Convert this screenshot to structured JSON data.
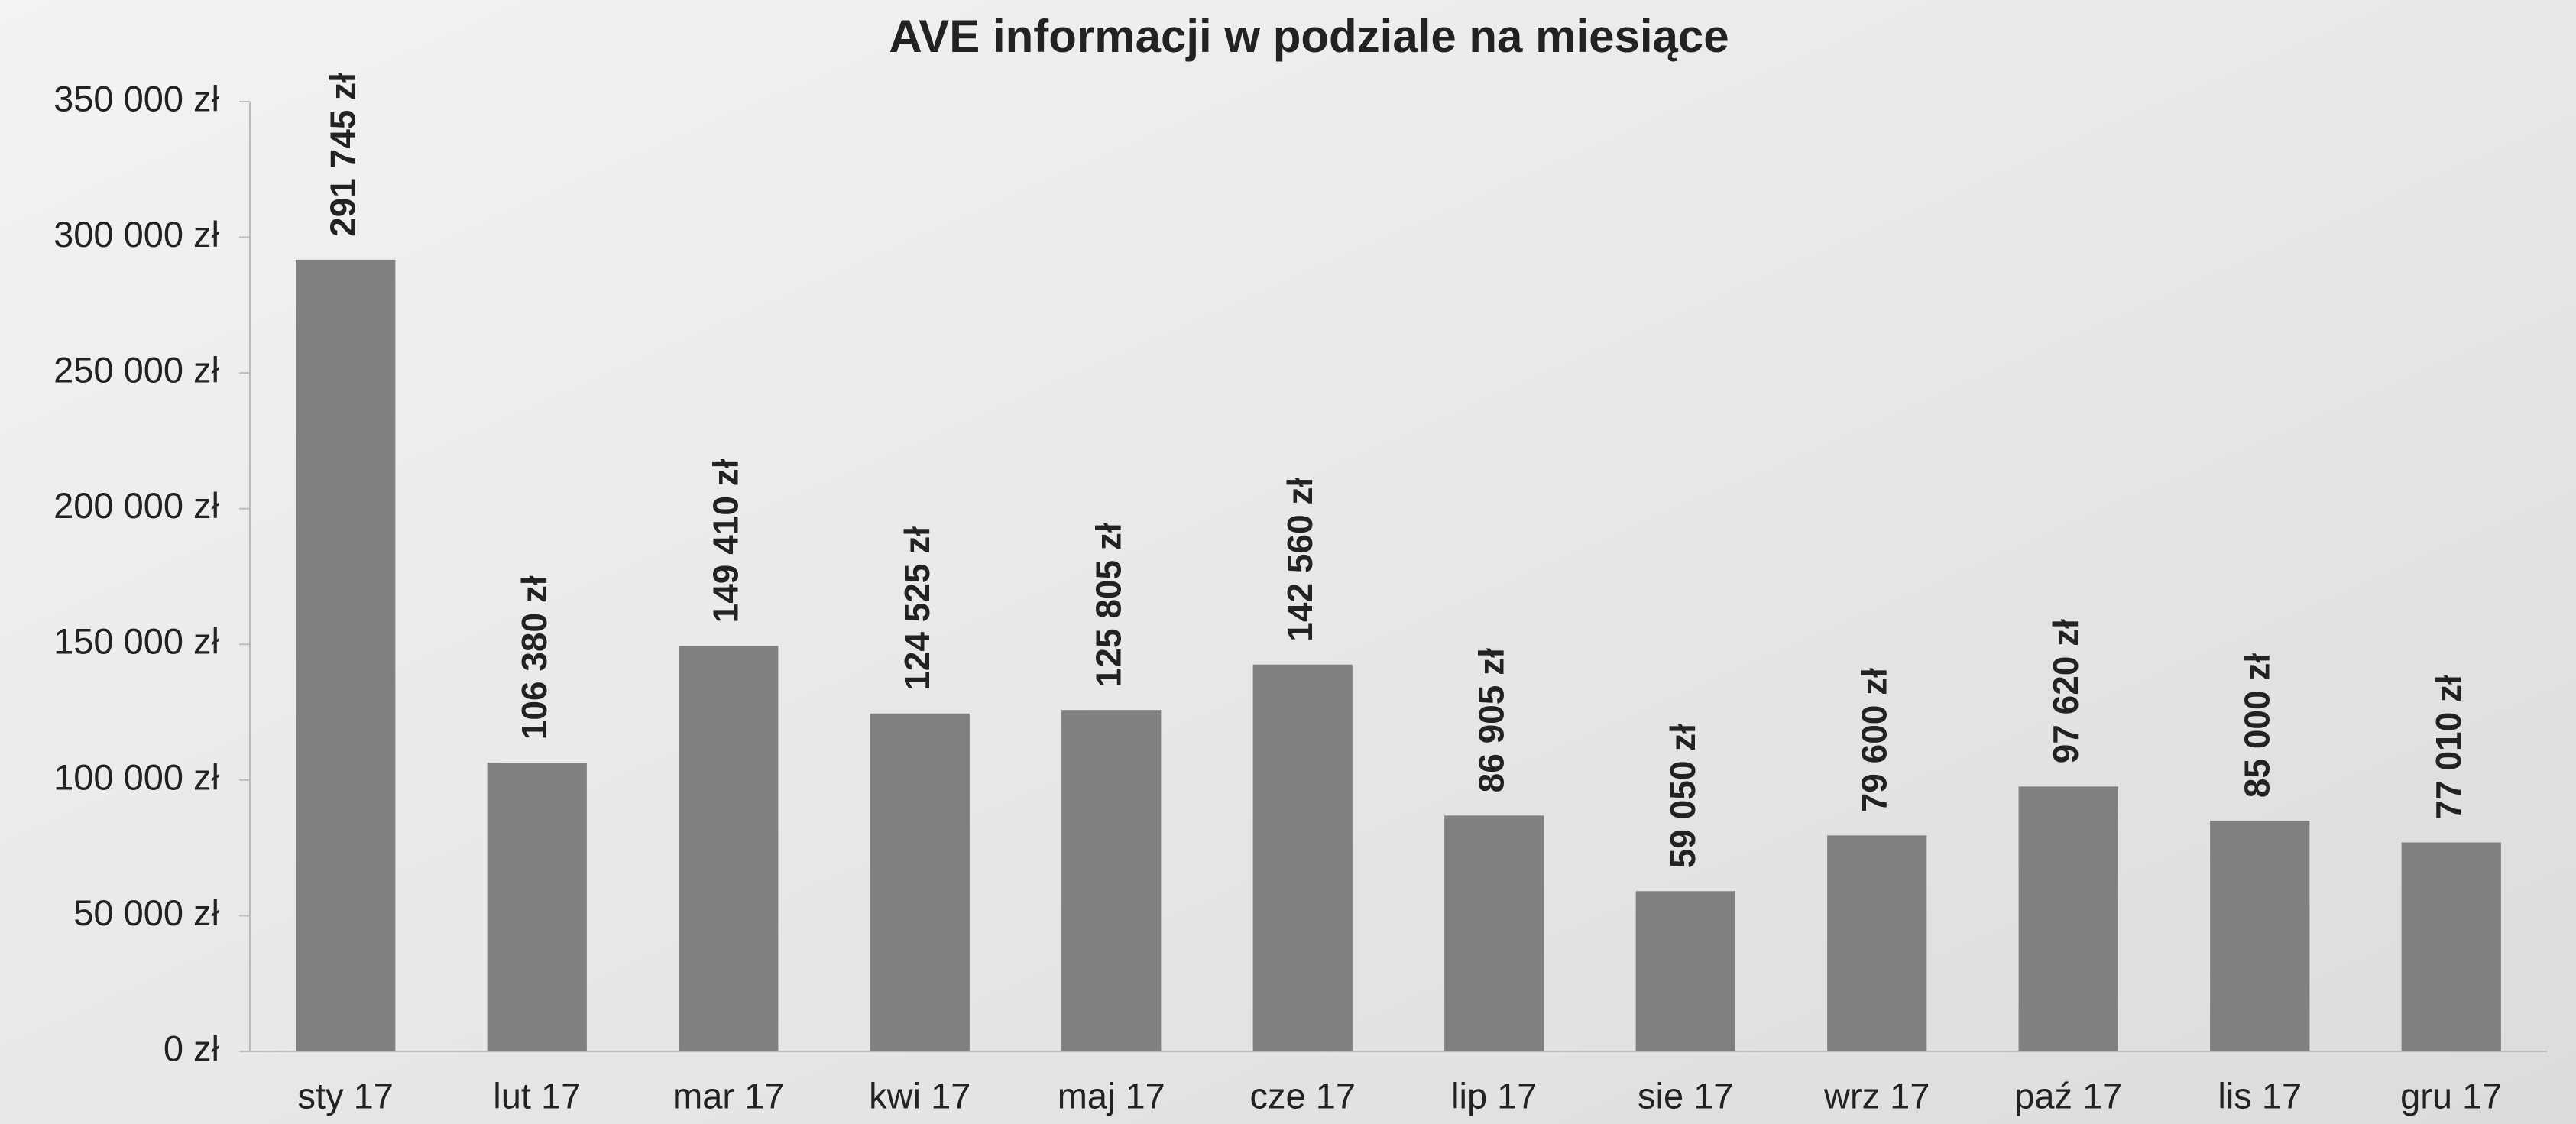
{
  "chart_data": {
    "type": "bar",
    "title": "AVE informacji w podziale na miesiące",
    "categories": [
      "sty 17",
      "lut 17",
      "mar 17",
      "kwi 17",
      "maj 17",
      "cze 17",
      "lip 17",
      "sie 17",
      "wrz 17",
      "paź 17",
      "lis 17",
      "gru 17"
    ],
    "values": [
      291745,
      106380,
      149410,
      124525,
      125805,
      142560,
      86905,
      59050,
      79600,
      97620,
      85000,
      77010
    ],
    "value_labels": [
      "291 745 zł",
      "106 380 zł",
      "149 410 zł",
      "124 525 zł",
      "125 805 zł",
      "142 560 zł",
      "86 905 zł",
      "59 050 zł",
      "79 600 zł",
      "97 620 zł",
      "85 000 zł",
      "77 010 zł"
    ],
    "color": "#808080",
    "ylim": [
      0,
      350000
    ],
    "yticks": [
      {
        "value": 0,
        "label": "0 zł"
      },
      {
        "value": 50000,
        "label": "50 000 zł"
      },
      {
        "value": 100000,
        "label": "100 000 zł"
      },
      {
        "value": 150000,
        "label": "150 000 zł"
      },
      {
        "value": 200000,
        "label": "200 000 zł"
      },
      {
        "value": 250000,
        "label": "250 000 zł"
      },
      {
        "value": 300000,
        "label": "300 000 zł"
      },
      {
        "value": 350000,
        "label": "350 000 zł"
      }
    ],
    "grid": false
  }
}
